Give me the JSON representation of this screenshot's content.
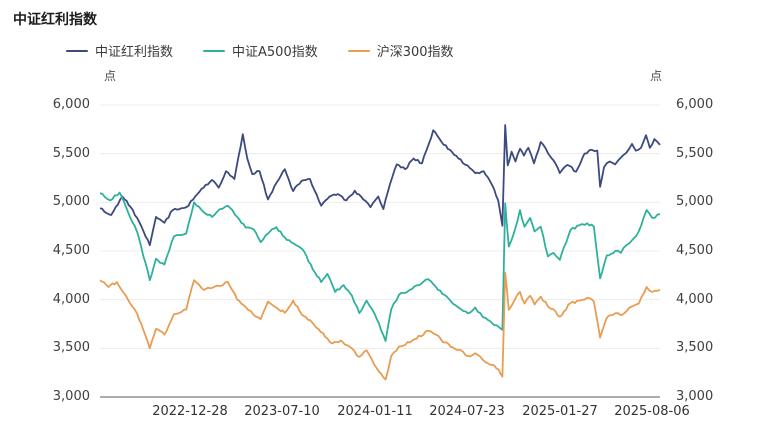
{
  "title": "中证红利指数",
  "unit_left": "点",
  "unit_right": "点",
  "legend": [
    {
      "label": "中证红利指数",
      "color": "#3c4a7e"
    },
    {
      "label": "中证A500指数",
      "color": "#2fb09c"
    },
    {
      "label": "沪深300指数",
      "color": "#e79d52"
    }
  ],
  "chart_data": {
    "type": "line",
    "title": "中证红利指数",
    "unit": "点",
    "ylim": [
      3000,
      6000
    ],
    "grid": true,
    "legend_position": "top",
    "noise": 13,
    "y_tick_labels": [
      "6,000",
      "5,500",
      "5,000",
      "4,500",
      "4,000",
      "3,500",
      "3,000"
    ],
    "y_grid_values": [
      6000,
      5500,
      5000,
      4500,
      4000,
      3500
    ],
    "x_tick_labels": [
      "2022-12-28",
      "2023-07-10",
      "2024-01-11",
      "2024-07-23",
      "2025-01-27",
      "2025-08-06"
    ],
    "axis_color": "#5a5a5a",
    "grid_color": "#ececec",
    "series": [
      {
        "name": "中证红利指数",
        "color": "#3c4a7e",
        "points": [
          [
            0,
            4940
          ],
          [
            0.02,
            4870
          ],
          [
            0.04,
            5060
          ],
          [
            0.055,
            4950
          ],
          [
            0.07,
            4800
          ],
          [
            0.089,
            4560
          ],
          [
            0.1,
            4850
          ],
          [
            0.115,
            4790
          ],
          [
            0.13,
            4920
          ],
          [
            0.154,
            4950
          ],
          [
            0.17,
            5060
          ],
          [
            0.185,
            5150
          ],
          [
            0.2,
            5230
          ],
          [
            0.212,
            5150
          ],
          [
            0.225,
            5320
          ],
          [
            0.24,
            5240
          ],
          [
            0.255,
            5700
          ],
          [
            0.263,
            5450
          ],
          [
            0.272,
            5290
          ],
          [
            0.285,
            5320
          ],
          [
            0.3,
            5030
          ],
          [
            0.315,
            5200
          ],
          [
            0.33,
            5340
          ],
          [
            0.345,
            5115
          ],
          [
            0.36,
            5220
          ],
          [
            0.375,
            5240
          ],
          [
            0.395,
            4965
          ],
          [
            0.41,
            5060
          ],
          [
            0.425,
            5085
          ],
          [
            0.44,
            5020
          ],
          [
            0.455,
            5120
          ],
          [
            0.47,
            5030
          ],
          [
            0.483,
            4950
          ],
          [
            0.497,
            5060
          ],
          [
            0.506,
            4930
          ],
          [
            0.518,
            5190
          ],
          [
            0.53,
            5390
          ],
          [
            0.545,
            5340
          ],
          [
            0.56,
            5450
          ],
          [
            0.575,
            5400
          ],
          [
            0.595,
            5740
          ],
          [
            0.61,
            5620
          ],
          [
            0.625,
            5540
          ],
          [
            0.64,
            5450
          ],
          [
            0.656,
            5380
          ],
          [
            0.67,
            5300
          ],
          [
            0.685,
            5320
          ],
          [
            0.7,
            5180
          ],
          [
            0.711,
            5020
          ],
          [
            0.7185,
            4760
          ],
          [
            0.7235,
            5795
          ],
          [
            0.728,
            5380
          ],
          [
            0.735,
            5520
          ],
          [
            0.742,
            5420
          ],
          [
            0.75,
            5550
          ],
          [
            0.757,
            5480
          ],
          [
            0.765,
            5560
          ],
          [
            0.775,
            5400
          ],
          [
            0.787,
            5620
          ],
          [
            0.8,
            5505
          ],
          [
            0.81,
            5430
          ],
          [
            0.821,
            5300
          ],
          [
            0.835,
            5385
          ],
          [
            0.85,
            5315
          ],
          [
            0.865,
            5500
          ],
          [
            0.878,
            5540
          ],
          [
            0.888,
            5530
          ],
          [
            0.893,
            5160
          ],
          [
            0.9,
            5360
          ],
          [
            0.91,
            5420
          ],
          [
            0.92,
            5390
          ],
          [
            0.93,
            5460
          ],
          [
            0.94,
            5510
          ],
          [
            0.95,
            5600
          ],
          [
            0.957,
            5530
          ],
          [
            0.966,
            5560
          ],
          [
            0.975,
            5690
          ],
          [
            0.982,
            5560
          ],
          [
            0.99,
            5650
          ],
          [
            1,
            5590
          ]
        ]
      },
      {
        "name": "中证A500指数",
        "color": "#2fb09c",
        "points": [
          [
            0,
            5095
          ],
          [
            0.018,
            5020
          ],
          [
            0.035,
            5100
          ],
          [
            0.05,
            4900
          ],
          [
            0.066,
            4700
          ],
          [
            0.089,
            4200
          ],
          [
            0.1,
            4420
          ],
          [
            0.115,
            4360
          ],
          [
            0.132,
            4650
          ],
          [
            0.154,
            4680
          ],
          [
            0.168,
            5000
          ],
          [
            0.185,
            4900
          ],
          [
            0.2,
            4850
          ],
          [
            0.214,
            4930
          ],
          [
            0.228,
            4965
          ],
          [
            0.245,
            4850
          ],
          [
            0.26,
            4740
          ],
          [
            0.274,
            4725
          ],
          [
            0.287,
            4590
          ],
          [
            0.3,
            4680
          ],
          [
            0.315,
            4745
          ],
          [
            0.33,
            4640
          ],
          [
            0.35,
            4560
          ],
          [
            0.365,
            4490
          ],
          [
            0.38,
            4310
          ],
          [
            0.395,
            4180
          ],
          [
            0.406,
            4265
          ],
          [
            0.42,
            4080
          ],
          [
            0.435,
            4150
          ],
          [
            0.45,
            4040
          ],
          [
            0.463,
            3862
          ],
          [
            0.476,
            3990
          ],
          [
            0.49,
            3860
          ],
          [
            0.51,
            3575
          ],
          [
            0.52,
            3900
          ],
          [
            0.534,
            4050
          ],
          [
            0.553,
            4100
          ],
          [
            0.586,
            4210
          ],
          [
            0.6,
            4130
          ],
          [
            0.615,
            4050
          ],
          [
            0.63,
            3960
          ],
          [
            0.645,
            3900
          ],
          [
            0.657,
            3860
          ],
          [
            0.67,
            3920
          ],
          [
            0.684,
            3820
          ],
          [
            0.7,
            3760
          ],
          [
            0.712,
            3720
          ],
          [
            0.7185,
            3690
          ],
          [
            0.7235,
            4990
          ],
          [
            0.73,
            4545
          ],
          [
            0.74,
            4700
          ],
          [
            0.75,
            4920
          ],
          [
            0.758,
            4750
          ],
          [
            0.768,
            4840
          ],
          [
            0.776,
            4700
          ],
          [
            0.787,
            4750
          ],
          [
            0.8,
            4445
          ],
          [
            0.81,
            4480
          ],
          [
            0.821,
            4410
          ],
          [
            0.84,
            4715
          ],
          [
            0.856,
            4765
          ],
          [
            0.87,
            4785
          ],
          [
            0.882,
            4750
          ],
          [
            0.893,
            4220
          ],
          [
            0.905,
            4455
          ],
          [
            0.92,
            4500
          ],
          [
            0.93,
            4480
          ],
          [
            0.94,
            4560
          ],
          [
            0.95,
            4610
          ],
          [
            0.962,
            4700
          ],
          [
            0.976,
            4920
          ],
          [
            0.986,
            4840
          ],
          [
            1,
            4880
          ]
        ]
      },
      {
        "name": "沪深300指数",
        "color": "#e79d52",
        "points": [
          [
            0,
            4200
          ],
          [
            0.015,
            4130
          ],
          [
            0.03,
            4180
          ],
          [
            0.05,
            4000
          ],
          [
            0.066,
            3860
          ],
          [
            0.089,
            3500
          ],
          [
            0.1,
            3700
          ],
          [
            0.115,
            3640
          ],
          [
            0.132,
            3850
          ],
          [
            0.154,
            3900
          ],
          [
            0.168,
            4200
          ],
          [
            0.185,
            4100
          ],
          [
            0.2,
            4120
          ],
          [
            0.214,
            4140
          ],
          [
            0.228,
            4185
          ],
          [
            0.245,
            4000
          ],
          [
            0.26,
            3925
          ],
          [
            0.274,
            3845
          ],
          [
            0.287,
            3800
          ],
          [
            0.3,
            3980
          ],
          [
            0.315,
            3920
          ],
          [
            0.33,
            3865
          ],
          [
            0.345,
            3990
          ],
          [
            0.36,
            3850
          ],
          [
            0.375,
            3790
          ],
          [
            0.39,
            3700
          ],
          [
            0.402,
            3620
          ],
          [
            0.415,
            3550
          ],
          [
            0.43,
            3580
          ],
          [
            0.445,
            3520
          ],
          [
            0.463,
            3412
          ],
          [
            0.476,
            3480
          ],
          [
            0.49,
            3330
          ],
          [
            0.51,
            3180
          ],
          [
            0.52,
            3420
          ],
          [
            0.534,
            3520
          ],
          [
            0.553,
            3560
          ],
          [
            0.586,
            3680
          ],
          [
            0.6,
            3640
          ],
          [
            0.615,
            3560
          ],
          [
            0.63,
            3510
          ],
          [
            0.645,
            3480
          ],
          [
            0.657,
            3420
          ],
          [
            0.67,
            3450
          ],
          [
            0.684,
            3380
          ],
          [
            0.7,
            3330
          ],
          [
            0.712,
            3280
          ],
          [
            0.7185,
            3210
          ],
          [
            0.7235,
            4275
          ],
          [
            0.73,
            3895
          ],
          [
            0.74,
            3990
          ],
          [
            0.75,
            4080
          ],
          [
            0.758,
            3960
          ],
          [
            0.768,
            4040
          ],
          [
            0.776,
            3950
          ],
          [
            0.787,
            4030
          ],
          [
            0.8,
            3930
          ],
          [
            0.81,
            3900
          ],
          [
            0.821,
            3825
          ],
          [
            0.84,
            3965
          ],
          [
            0.856,
            3990
          ],
          [
            0.87,
            4020
          ],
          [
            0.882,
            3980
          ],
          [
            0.893,
            3610
          ],
          [
            0.905,
            3815
          ],
          [
            0.92,
            3860
          ],
          [
            0.93,
            3840
          ],
          [
            0.94,
            3880
          ],
          [
            0.95,
            3930
          ],
          [
            0.962,
            3960
          ],
          [
            0.976,
            4130
          ],
          [
            0.986,
            4080
          ],
          [
            1,
            4100
          ]
        ]
      }
    ]
  }
}
